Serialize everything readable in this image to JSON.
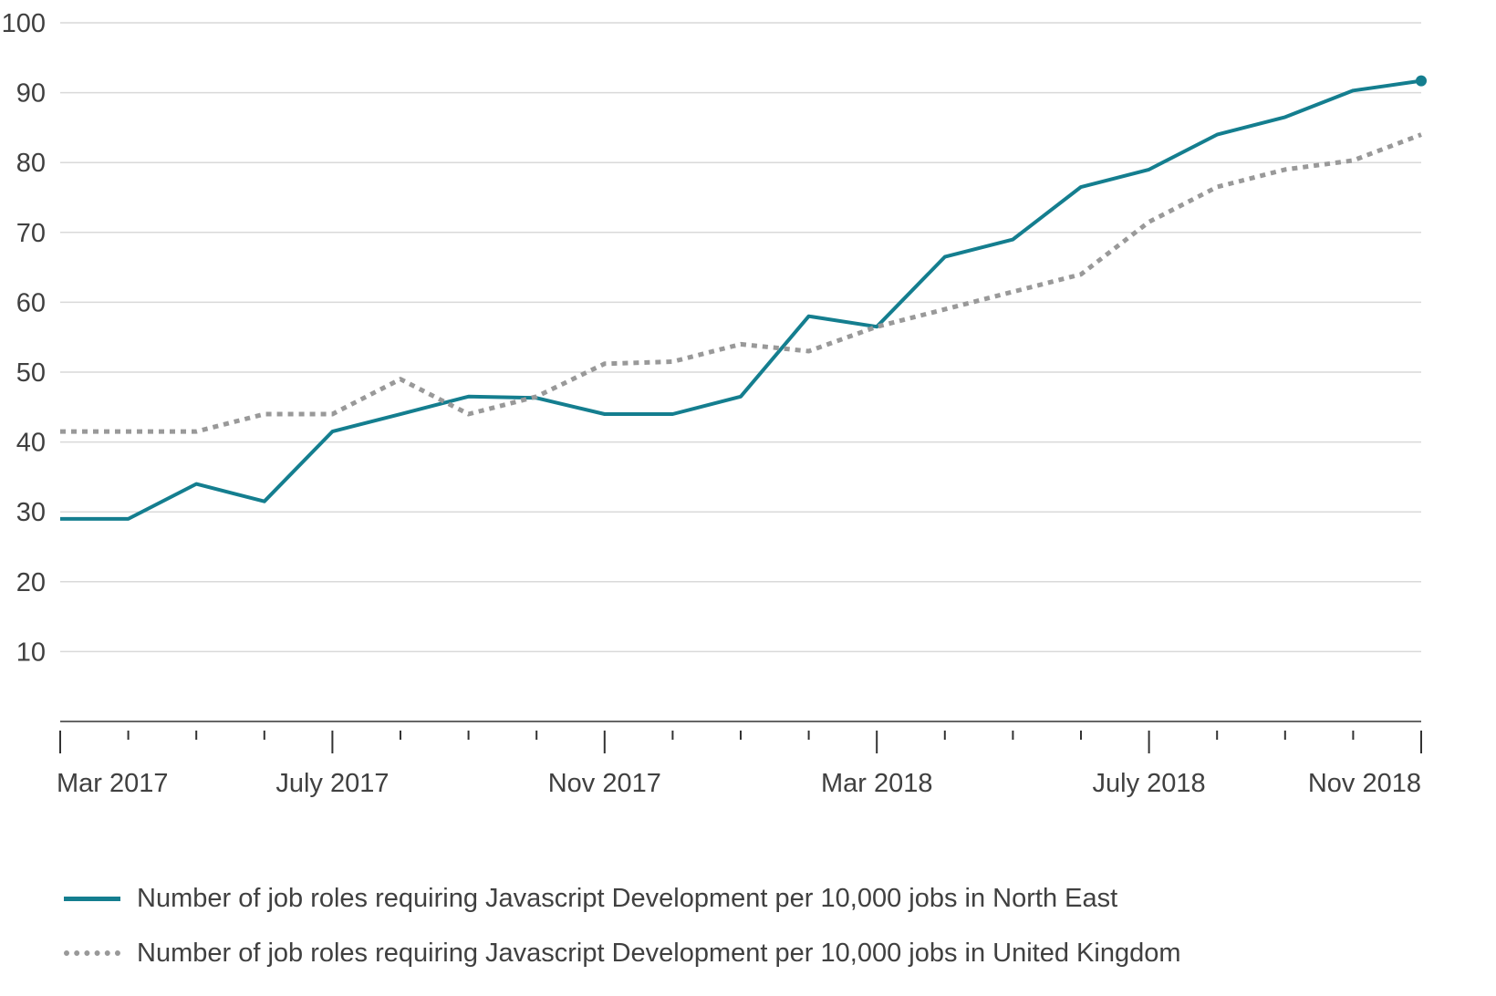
{
  "colors": {
    "north_east": "#147e8f",
    "united_kingdom": "#999999",
    "grid": "#d9d9d9",
    "axis": "#333333",
    "text": "#404040"
  },
  "chart_data": {
    "type": "line",
    "x": [
      "2017-03",
      "2017-04",
      "2017-05",
      "2017-06",
      "2017-07",
      "2017-08",
      "2017-09",
      "2017-10",
      "2017-11",
      "2017-12",
      "2018-01",
      "2018-02",
      "2018-03",
      "2018-04",
      "2018-05",
      "2018-06",
      "2018-07",
      "2018-08",
      "2018-09",
      "2018-10",
      "2018-11"
    ],
    "x_tick_labels": [
      {
        "x": "2017-03",
        "label": "Mar 2017"
      },
      {
        "x": "2017-07",
        "label": "July 2017"
      },
      {
        "x": "2017-11",
        "label": "Nov 2017"
      },
      {
        "x": "2018-03",
        "label": "Mar 2018"
      },
      {
        "x": "2018-07",
        "label": "July 2018"
      },
      {
        "x": "2018-11",
        "label": "Nov 2018"
      }
    ],
    "y_ticks": [
      10,
      20,
      30,
      40,
      50,
      60,
      70,
      80,
      90,
      100
    ],
    "ylim": [
      0,
      100
    ],
    "grid": true,
    "legend_position": "bottom",
    "series": [
      {
        "name": "Number of job roles requiring Javascript Development per 10,000 jobs in North East",
        "style": "solid",
        "color": "#147e8f",
        "end_marker": true,
        "values": [
          29,
          29,
          34,
          31.5,
          41.5,
          44,
          46.5,
          46.3,
          44,
          44,
          46.5,
          58,
          56.5,
          66.5,
          69,
          76.5,
          79,
          84,
          86.5,
          90.3,
          91.7
        ]
      },
      {
        "name": "Number of job roles requiring Javascript Development per 10,000 jobs in United Kingdom",
        "style": "dotted",
        "color": "#999999",
        "end_marker": false,
        "values": [
          41.5,
          41.5,
          41.5,
          44,
          44,
          49,
          44,
          46.5,
          51.2,
          51.5,
          54,
          53,
          56.5,
          59,
          61.5,
          64,
          71.5,
          76.5,
          79,
          80.3,
          84
        ]
      }
    ]
  }
}
